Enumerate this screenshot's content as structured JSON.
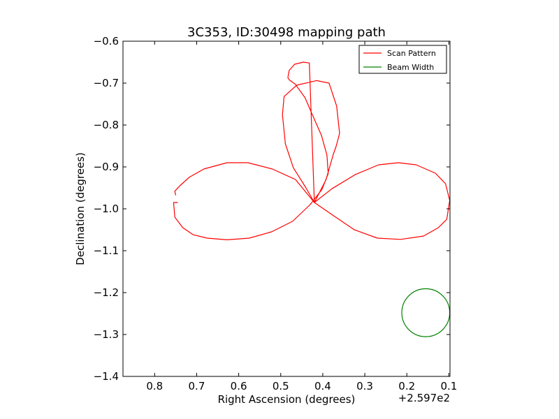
{
  "chart_data": {
    "type": "line",
    "title": "3C353, ID:30498 mapping path",
    "xlabel": "Right Ascension (degrees)",
    "ylabel": "Declination (degrees)",
    "x_offset_label": "+2.597e2",
    "x_offset_value": 259.7,
    "xlim": [
      0.8753,
      0.0973
    ],
    "ylim": [
      -1.4,
      -0.6
    ],
    "x_inverted": true,
    "xticks": [
      0.8,
      0.7,
      0.6,
      0.5,
      0.4,
      0.3,
      0.2,
      0.1
    ],
    "xtick_labels": [
      "0.8",
      "0.7",
      "0.6",
      "0.5",
      "0.4",
      "0.3",
      "0.2",
      "0.1"
    ],
    "yticks": [
      -0.6,
      -0.7,
      -0.8,
      -0.9,
      -1.0,
      -1.1,
      -1.2,
      -1.3,
      -1.4
    ],
    "ytick_labels": [
      "−0.6",
      "−0.7",
      "−0.8",
      "−0.9",
      "−1.0",
      "−1.1",
      "−1.2",
      "−1.3",
      "−1.4"
    ],
    "grid": false,
    "legend_position": "top-right",
    "series": [
      {
        "name": "Scan Pattern",
        "color": "#ff0000",
        "x": [
          0.745,
          0.755,
          0.752,
          0.733,
          0.708,
          0.675,
          0.628,
          0.575,
          0.522,
          0.472,
          0.43,
          0.402,
          0.387,
          0.39,
          0.403,
          0.425,
          0.442,
          0.465,
          0.479,
          0.483,
          0.48,
          0.467,
          0.446,
          0.432,
          0.42,
          0.378,
          0.322,
          0.267,
          0.22,
          0.178,
          0.132,
          0.108,
          0.098,
          0.105,
          0.125,
          0.16,
          0.215,
          0.27,
          0.325,
          0.375,
          0.42,
          0.44,
          0.47,
          0.489,
          0.496,
          0.492,
          0.462,
          0.415,
          0.385,
          0.367,
          0.36,
          0.368,
          0.375,
          0.392,
          0.42,
          0.465,
          0.52,
          0.578,
          0.628,
          0.683,
          0.718,
          0.74,
          0.752,
          0.75
        ],
        "y": [
          -0.985,
          -0.985,
          -1.02,
          -1.045,
          -1.062,
          -1.07,
          -1.074,
          -1.07,
          -1.055,
          -1.03,
          -0.99,
          -0.954,
          -0.916,
          -0.872,
          -0.825,
          -0.775,
          -0.735,
          -0.703,
          -0.693,
          -0.687,
          -0.67,
          -0.655,
          -0.65,
          -0.652,
          -0.985,
          -0.952,
          -0.918,
          -0.895,
          -0.89,
          -0.895,
          -0.915,
          -0.94,
          -0.98,
          -1.025,
          -1.045,
          -1.065,
          -1.073,
          -1.07,
          -1.05,
          -1.016,
          -0.985,
          -0.95,
          -0.902,
          -0.845,
          -0.775,
          -0.732,
          -0.705,
          -0.694,
          -0.7,
          -0.755,
          -0.82,
          -0.85,
          -0.87,
          -0.93,
          -0.985,
          -0.93,
          -0.905,
          -0.89,
          -0.89,
          -0.905,
          -0.925,
          -0.945,
          -0.958,
          -0.968
        ],
        "closed": false
      },
      {
        "name": "Beam Width",
        "color": "#008000",
        "shape": "circle",
        "center": [
          0.155,
          -1.248
        ],
        "radius_deg": 0.057
      }
    ]
  }
}
